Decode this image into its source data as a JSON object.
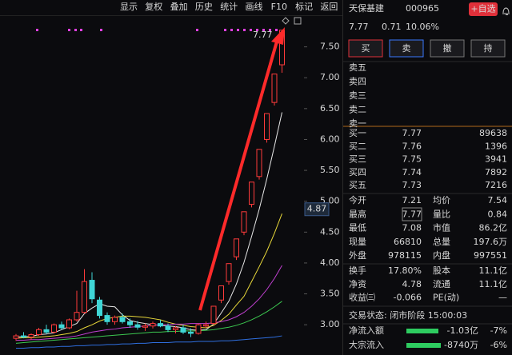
{
  "toolbar": [
    "显示",
    "复权",
    "叠加",
    "历史",
    "统计",
    "画线",
    "F10",
    "标记",
    "返回"
  ],
  "chart_data": {
    "type": "candlestick",
    "open": [
      2.78,
      2.82,
      2.8,
      2.84,
      2.92,
      2.88,
      3.0,
      2.95,
      3.08,
      3.2,
      3.72,
      3.4,
      3.15,
      3.05,
      3.12,
      3.05,
      3.0,
      2.96,
      2.98,
      3.02,
      2.98,
      2.92,
      2.95,
      2.88,
      2.86,
      2.98,
      3.02,
      3.4,
      3.7,
      4.1,
      4.5,
      4.95,
      5.4,
      6.0,
      6.6,
      7.21
    ],
    "high": [
      2.85,
      2.88,
      2.86,
      2.95,
      3.0,
      3.02,
      3.05,
      3.1,
      3.55,
      3.9,
      3.85,
      3.45,
      3.2,
      3.15,
      3.18,
      3.1,
      3.06,
      3.02,
      3.05,
      3.08,
      3.02,
      2.98,
      3.0,
      2.94,
      3.02,
      3.05,
      3.3,
      3.63,
      3.99,
      4.39,
      4.83,
      5.31,
      5.84,
      6.42,
      7.06,
      7.77
    ],
    "low": [
      2.74,
      2.78,
      2.76,
      2.82,
      2.85,
      2.86,
      2.92,
      2.93,
      3.05,
      3.18,
      3.35,
      3.1,
      3.0,
      3.0,
      3.02,
      2.95,
      2.92,
      2.9,
      2.94,
      2.96,
      2.88,
      2.86,
      2.85,
      2.8,
      2.84,
      2.95,
      3.0,
      3.35,
      3.65,
      4.05,
      4.45,
      4.9,
      5.35,
      5.95,
      6.55,
      7.08
    ],
    "close": [
      2.82,
      2.8,
      2.84,
      2.92,
      2.88,
      3.0,
      2.95,
      3.08,
      3.2,
      3.7,
      3.42,
      3.15,
      3.05,
      3.12,
      3.05,
      3.0,
      2.96,
      2.98,
      3.02,
      2.98,
      2.92,
      2.95,
      2.88,
      2.86,
      3.0,
      3.0,
      3.3,
      3.63,
      3.99,
      4.39,
      4.83,
      5.31,
      5.84,
      6.42,
      7.06,
      7.77
    ],
    "up_color": "#ff3b3b",
    "down_color": "#3fd6d6",
    "ma_lines": [
      {
        "color": "#e8e8e8",
        "values": [
          2.8,
          2.81,
          2.81,
          2.84,
          2.85,
          2.87,
          2.92,
          2.97,
          3.02,
          3.18,
          3.27,
          3.34,
          3.3,
          3.29,
          3.16,
          3.07,
          3.04,
          3.02,
          3.0,
          2.99,
          2.98,
          2.97,
          2.95,
          2.92,
          2.91,
          2.92,
          3.01,
          3.19,
          3.38,
          3.66,
          4.01,
          4.43,
          4.87,
          5.36,
          5.89,
          6.44
        ]
      },
      {
        "color": "#e8d83a",
        "values": [
          2.78,
          2.79,
          2.79,
          2.8,
          2.81,
          2.82,
          2.84,
          2.86,
          2.89,
          2.95,
          3.0,
          3.06,
          3.1,
          3.12,
          3.14,
          3.14,
          3.13,
          3.12,
          3.1,
          3.08,
          3.04,
          3.01,
          2.99,
          2.97,
          2.96,
          2.95,
          2.99,
          3.07,
          3.17,
          3.32,
          3.46,
          3.7,
          3.94,
          4.19,
          4.48,
          4.8
        ]
      },
      {
        "color": "#c040d0",
        "values": [
          2.75,
          2.75,
          2.76,
          2.76,
          2.77,
          2.78,
          2.79,
          2.8,
          2.82,
          2.85,
          2.88,
          2.9,
          2.92,
          2.93,
          2.95,
          2.96,
          2.97,
          2.98,
          2.99,
          3.0,
          3.0,
          3.01,
          3.01,
          3.02,
          3.02,
          3.02,
          3.03,
          3.05,
          3.08,
          3.13,
          3.2,
          3.3,
          3.42,
          3.57,
          3.75,
          3.96
        ]
      },
      {
        "color": "#3cc850",
        "values": [
          2.7,
          2.71,
          2.72,
          2.73,
          2.74,
          2.75,
          2.76,
          2.77,
          2.78,
          2.79,
          2.8,
          2.81,
          2.82,
          2.83,
          2.84,
          2.85,
          2.86,
          2.87,
          2.88,
          2.88,
          2.89,
          2.89,
          2.9,
          2.9,
          2.9,
          2.91,
          2.92,
          2.94,
          2.96,
          2.99,
          3.03,
          3.08,
          3.14,
          3.21,
          3.29,
          3.38
        ]
      },
      {
        "color": "#2f6fe0",
        "values": [
          2.62,
          2.62,
          2.63,
          2.63,
          2.64,
          2.64,
          2.65,
          2.65,
          2.66,
          2.66,
          2.67,
          2.67,
          2.68,
          2.68,
          2.69,
          2.69,
          2.7,
          2.7,
          2.71,
          2.71,
          2.71,
          2.72,
          2.72,
          2.72,
          2.73,
          2.73,
          2.73,
          2.74,
          2.74,
          2.75,
          2.76,
          2.77,
          2.78,
          2.79,
          2.8,
          2.82
        ]
      }
    ],
    "ylim": [
      2.51,
      8.0
    ],
    "yticks": [
      {
        "value": 3,
        "label": "3.00"
      },
      {
        "value": 3.5,
        "label": "3.50"
      },
      {
        "value": 4,
        "label": "4.00"
      },
      {
        "value": 4.5,
        "label": "4.50"
      },
      {
        "value": 5,
        "label": "5.00"
      },
      {
        "value": 5.5,
        "label": "5.50"
      },
      {
        "value": 6,
        "label": "6.00"
      },
      {
        "value": 6.5,
        "label": "6.50"
      },
      {
        "value": 7,
        "label": "7.00"
      },
      {
        "value": 7.5,
        "label": "7.50"
      }
    ],
    "price_marker": 4.87,
    "grid": false
  },
  "quote": {
    "name": "天保基建",
    "code": "000965",
    "add_button": "+自选",
    "price": "7.77",
    "change": "0.71",
    "change_pct": "10.06%",
    "trade_buttons": [
      "买",
      "卖",
      "撤",
      "持"
    ],
    "asks": [
      "卖五",
      "卖四",
      "卖三",
      "卖二",
      "卖一"
    ],
    "bids": [
      [
        "买一",
        "7.77",
        "89638"
      ],
      [
        "买二",
        "7.76",
        "1396"
      ],
      [
        "买三",
        "7.75",
        "3941"
      ],
      [
        "买四",
        "7.74",
        "7892"
      ],
      [
        "买五",
        "7.73",
        "7216"
      ]
    ],
    "stats": [
      [
        {
          "label": "今开",
          "value": "7.21",
          "color": "#ff4a4a"
        },
        {
          "label": "均价",
          "value": "7.54",
          "color": "#ff4a4a"
        }
      ],
      [
        {
          "label": "最高",
          "value": "7.77",
          "color": "#ff4a4a"
        },
        {
          "label": "量比",
          "value": "0.84",
          "color": "#2ecc60"
        }
      ],
      [
        {
          "label": "最低",
          "value": "7.08",
          "color": "#ff4a4a"
        },
        {
          "label": "市值",
          "value": "86.2亿",
          "color": "#e0e0e0"
        }
      ],
      [
        {
          "label": "现量",
          "value": "66810",
          "color": "#d040d0"
        },
        {
          "label": "总量",
          "value": "197.6万",
          "color": "#e0e0e0"
        }
      ],
      [
        {
          "label": "外盘",
          "value": "978115",
          "color": "#ff4a4a"
        },
        {
          "label": "内盘",
          "value": "997551",
          "color": "#2ecc60"
        }
      ]
    ],
    "stats2": [
      [
        {
          "label": "换手",
          "value": "17.80%"
        },
        {
          "label": "股本",
          "value": "11.1亿"
        }
      ],
      [
        {
          "label": "净资",
          "value": "4.78"
        },
        {
          "label": "流通",
          "value": "11.1亿"
        }
      ],
      [
        {
          "label": "收益㈢",
          "value": "-0.066"
        },
        {
          "label": "PE(动)",
          "value": "—"
        }
      ]
    ],
    "status": "交易状态: 闭市阶段 15:00:03",
    "flows": [
      [
        "净流入额",
        "-1.03亿",
        "-7%"
      ],
      [
        "大宗流入",
        "-8740万",
        "-6%"
      ]
    ]
  }
}
